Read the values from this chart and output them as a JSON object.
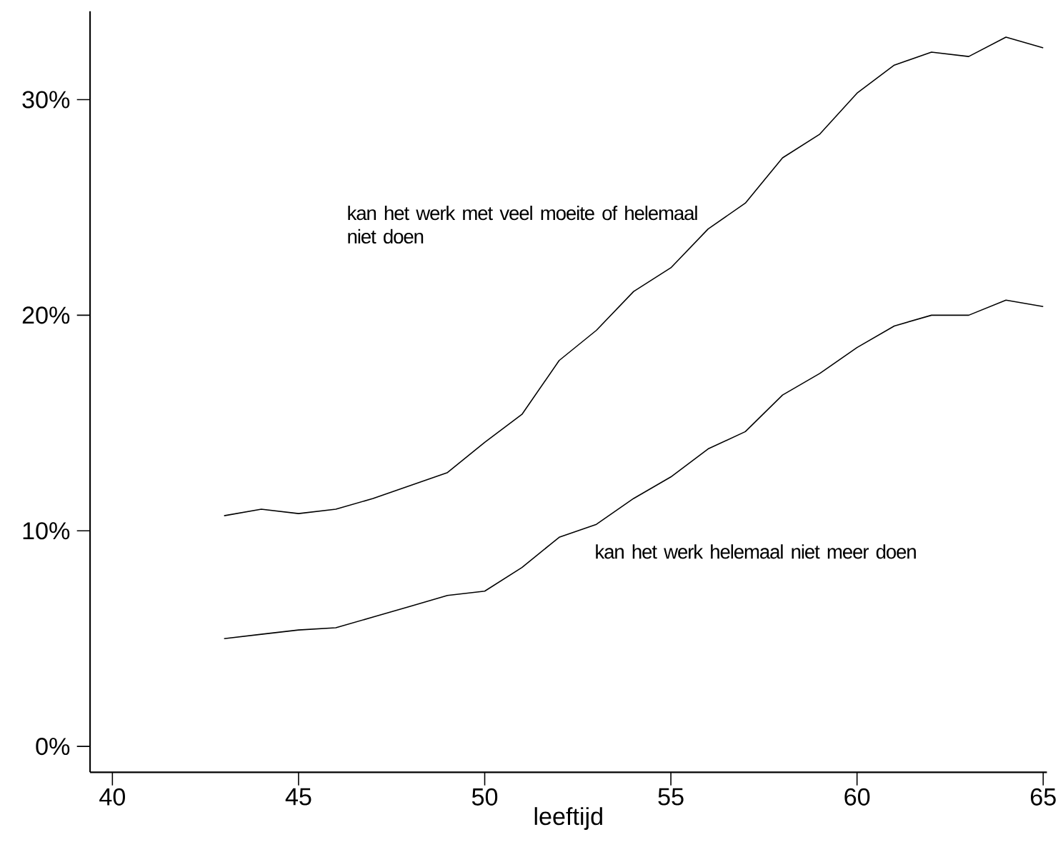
{
  "chart_data": {
    "type": "line",
    "xlabel": "leeftijd",
    "x": [
      43,
      44,
      45,
      46,
      47,
      48,
      49,
      50,
      51,
      52,
      53,
      54,
      55,
      56,
      57,
      58,
      59,
      60,
      61,
      62,
      63,
      64,
      65
    ],
    "series": [
      {
        "name": "kan het werk met veel moeite of helemaal niet doen",
        "color": "#000000",
        "values": [
          10.7,
          11.0,
          10.8,
          11.0,
          11.5,
          12.1,
          12.7,
          14.1,
          15.4,
          17.9,
          19.3,
          21.1,
          22.2,
          24.0,
          25.2,
          27.3,
          28.4,
          30.3,
          31.6,
          32.2,
          32.0,
          32.9,
          32.4
        ]
      },
      {
        "name": "kan het werk helemaal niet meer doen",
        "color": "#000000",
        "values": [
          5.0,
          5.2,
          5.4,
          5.5,
          6.0,
          6.5,
          7.0,
          7.2,
          8.3,
          9.7,
          10.3,
          11.5,
          12.5,
          13.8,
          14.6,
          16.3,
          17.3,
          18.5,
          19.5,
          20.0,
          20.0,
          20.7,
          20.4
        ]
      }
    ],
    "xlim": [
      39.4,
      65.1
    ],
    "ylim": [
      -1.2,
      34.1
    ],
    "xticks": [
      40,
      45,
      50,
      55,
      60,
      65
    ],
    "yticks": [
      {
        "value": 0,
        "label": "0%"
      },
      {
        "value": 10,
        "label": "10%"
      },
      {
        "value": 20,
        "label": "20%"
      },
      {
        "value": 30,
        "label": "30%"
      }
    ],
    "grid": false,
    "legend": false,
    "marker": "none",
    "line_style": "solid"
  }
}
